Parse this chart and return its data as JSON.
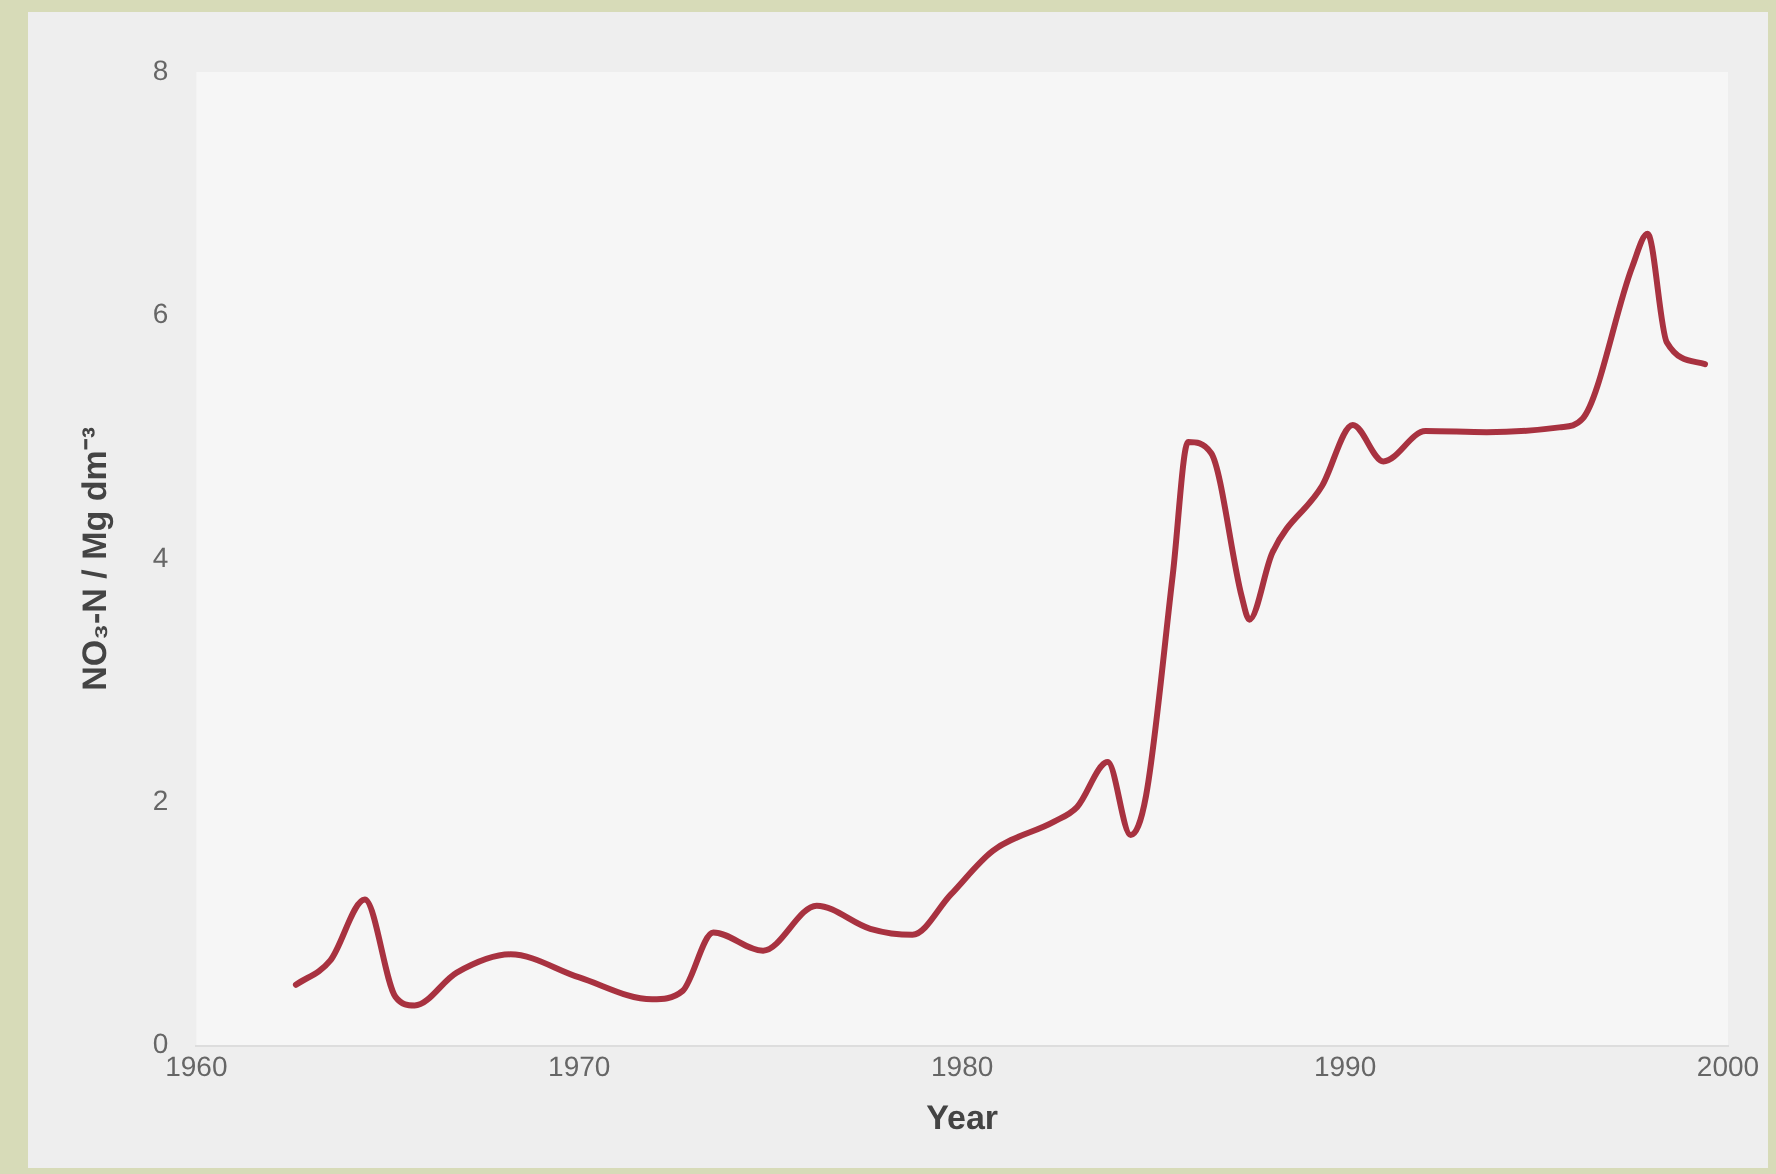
{
  "chart_data": {
    "type": "line",
    "xlabel": "Year",
    "ylabel": "NO₃-N / Mg dm⁻³",
    "xlim": [
      1960,
      2000
    ],
    "xticks": [
      1960,
      1970,
      1980,
      1990,
      2000
    ],
    "ylim": [
      0,
      8
    ],
    "yticks": [
      0,
      2,
      4,
      6,
      8
    ],
    "grid": false,
    "legend": false,
    "marker": "none",
    "series": [
      {
        "color": "#a83240",
        "x": [
          1962.6,
          1963.5,
          1964.4,
          1965.2,
          1965.7,
          1966.8,
          1968.2,
          1970,
          1971.9,
          1972.7,
          1973.5,
          1974.8,
          1976.2,
          1977.6,
          1978.7,
          1979.7,
          1980.8,
          1982.4,
          1983,
          1983.8,
          1984.4,
          1984.8,
          1985.5,
          1985.9,
          1986.5,
          1987.3,
          1987.5,
          1988.1,
          1989.4,
          1990.2,
          1991,
          1992.1,
          1993.7,
          1995.6,
          1996.2,
          1997.5,
          1997.9,
          1998.4,
          1999.4
        ],
        "values": [
          0.5,
          0.7,
          1.2,
          0.4,
          0.33,
          0.6,
          0.75,
          0.56,
          0.38,
          0.45,
          0.93,
          0.78,
          1.15,
          0.96,
          0.91,
          1.24,
          1.6,
          1.84,
          1.96,
          2.33,
          1.73,
          2.05,
          3.87,
          4.96,
          4.87,
          3.69,
          3.5,
          4.05,
          4.6,
          5.1,
          4.8,
          5.05,
          5.04,
          5.08,
          5.15,
          6.4,
          6.67,
          5.78,
          5.6
        ]
      }
    ]
  }
}
